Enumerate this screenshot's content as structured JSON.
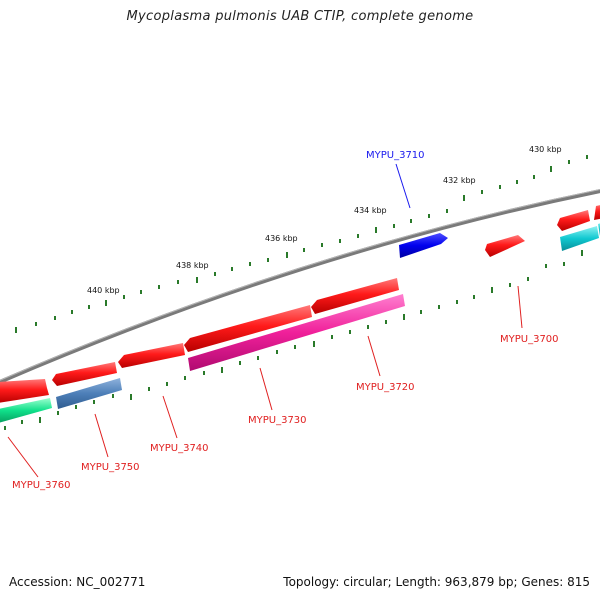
{
  "title": "Mycoplasma pulmonis UAB CTIP, complete genome",
  "footer": {
    "accession": "Accession: NC_002771",
    "summary": "Topology: circular; Length: 963,879 bp; Genes: 815"
  },
  "colors": {
    "backbone": "#7a7a7a",
    "tick": "#2a7a2a",
    "gene_label_default": "#e02020",
    "gene_label_highlight": "#1a1aee"
  },
  "scale_ticks": [
    {
      "label": "430 kbp"
    },
    {
      "label": "432 kbp"
    },
    {
      "label": "434 kbp"
    },
    {
      "label": "436 kbp"
    },
    {
      "label": "438 kbp"
    },
    {
      "label": "440 kbp"
    }
  ],
  "genes": [
    {
      "label": "MYPU_3700",
      "color": "#e02020"
    },
    {
      "label": "MYPU_3710",
      "color": "#1a1aee"
    },
    {
      "label": "MYPU_3720",
      "color": "#e02020"
    },
    {
      "label": "MYPU_3730",
      "color": "#e02020"
    },
    {
      "label": "MYPU_3740",
      "color": "#e02020"
    },
    {
      "label": "MYPU_3750",
      "color": "#e02020"
    },
    {
      "label": "MYPU_3760",
      "color": "#e02020"
    }
  ]
}
